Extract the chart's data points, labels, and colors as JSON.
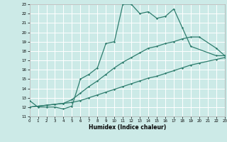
{
  "xlabel": "Humidex (Indice chaleur)",
  "xlim": [
    0,
    23
  ],
  "ylim": [
    11,
    23
  ],
  "yticks": [
    11,
    12,
    13,
    14,
    15,
    16,
    17,
    18,
    19,
    20,
    21,
    22,
    23
  ],
  "xticks": [
    0,
    1,
    2,
    3,
    4,
    5,
    6,
    7,
    8,
    9,
    10,
    11,
    12,
    13,
    14,
    15,
    16,
    17,
    18,
    19,
    20,
    21,
    22,
    23
  ],
  "bg_color": "#cceae7",
  "grid_color": "#ffffff",
  "line_color": "#2e7d6e",
  "line1_x": [
    0,
    1,
    2,
    3,
    4,
    5,
    6,
    7,
    8,
    9,
    10,
    11,
    12,
    13,
    14,
    15,
    16,
    17,
    18,
    19,
    22,
    23
  ],
  "line1_y": [
    12.7,
    12.0,
    12.0,
    12.0,
    11.8,
    12.1,
    15.0,
    15.5,
    16.2,
    18.8,
    19.0,
    23.0,
    23.0,
    22.0,
    22.2,
    21.5,
    21.7,
    22.5,
    20.5,
    18.5,
    17.5,
    17.5
  ],
  "line2_x": [
    0,
    1,
    2,
    3,
    4,
    5,
    6,
    7,
    8,
    9,
    10,
    11,
    12,
    13,
    14,
    15,
    16,
    17,
    18,
    19,
    20,
    22,
    23
  ],
  "line2_y": [
    12.0,
    12.1,
    12.2,
    12.3,
    12.4,
    12.8,
    13.5,
    14.2,
    14.8,
    15.5,
    16.2,
    16.8,
    17.3,
    17.8,
    18.3,
    18.5,
    18.8,
    19.0,
    19.3,
    19.5,
    19.5,
    18.3,
    17.5
  ],
  "line3_x": [
    0,
    1,
    2,
    3,
    4,
    5,
    6,
    7,
    8,
    9,
    10,
    11,
    12,
    13,
    14,
    15,
    16,
    17,
    18,
    19,
    20,
    22,
    23
  ],
  "line3_y": [
    12.0,
    12.1,
    12.2,
    12.3,
    12.4,
    12.5,
    12.7,
    13.0,
    13.3,
    13.6,
    13.9,
    14.2,
    14.5,
    14.8,
    15.1,
    15.3,
    15.6,
    15.9,
    16.2,
    16.5,
    16.7,
    17.1,
    17.3
  ]
}
